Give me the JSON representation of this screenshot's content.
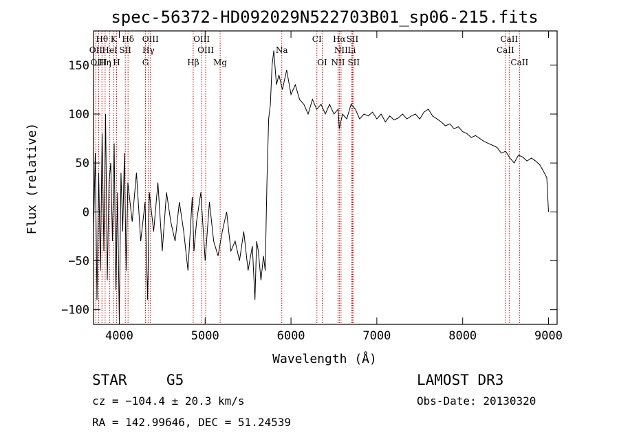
{
  "chart_data": {
    "type": "line",
    "title": "spec-56372-HD092029N522703B01_sp06-215.fits",
    "xlabel": "Wavelength (Å)",
    "ylabel": "Flux (relative)",
    "xlim": [
      3700,
      9100
    ],
    "ylim": [
      -115,
      185
    ],
    "xticks": [
      4000,
      5000,
      6000,
      7000,
      8000,
      9000
    ],
    "yticks": [
      -100,
      -50,
      0,
      50,
      100,
      150
    ],
    "series": [
      {
        "name": "flux",
        "x": [
          3700,
          3720,
          3740,
          3760,
          3780,
          3800,
          3820,
          3840,
          3860,
          3880,
          3900,
          3920,
          3940,
          3960,
          3980,
          4000,
          4020,
          4040,
          4060,
          4080,
          4100,
          4150,
          4200,
          4250,
          4300,
          4330,
          4350,
          4400,
          4450,
          4500,
          4550,
          4600,
          4650,
          4700,
          4750,
          4800,
          4850,
          4870,
          4900,
          4950,
          5000,
          5050,
          5100,
          5150,
          5200,
          5250,
          5300,
          5350,
          5400,
          5450,
          5500,
          5550,
          5580,
          5600,
          5620,
          5650,
          5680,
          5700,
          5720,
          5740,
          5760,
          5780,
          5800,
          5830,
          5860,
          5900,
          5950,
          6000,
          6050,
          6100,
          6150,
          6200,
          6250,
          6300,
          6350,
          6400,
          6450,
          6500,
          6550,
          6563,
          6600,
          6650,
          6700,
          6750,
          6800,
          6850,
          6900,
          6950,
          7000,
          7050,
          7100,
          7150,
          7200,
          7250,
          7300,
          7350,
          7400,
          7450,
          7500,
          7550,
          7600,
          7650,
          7700,
          7750,
          7800,
          7850,
          7900,
          7950,
          8000,
          8050,
          8100,
          8150,
          8200,
          8250,
          8300,
          8350,
          8400,
          8450,
          8500,
          8550,
          8600,
          8650,
          8700,
          8750,
          8800,
          8850,
          8900,
          8950,
          8980,
          9000
        ],
        "values": [
          -20,
          60,
          -90,
          40,
          -60,
          80,
          -40,
          100,
          -70,
          30,
          50,
          -30,
          70,
          -80,
          20,
          -110,
          40,
          -20,
          60,
          -60,
          30,
          -10,
          40,
          -30,
          10,
          -90,
          20,
          -20,
          30,
          -40,
          20,
          -10,
          -30,
          10,
          -20,
          -60,
          15,
          -40,
          -10,
          20,
          -50,
          10,
          -30,
          -45,
          -20,
          0,
          -40,
          -30,
          -50,
          -20,
          -60,
          -35,
          -90,
          -30,
          -40,
          -70,
          -45,
          -60,
          30,
          95,
          110,
          150,
          165,
          130,
          140,
          125,
          145,
          120,
          130,
          115,
          110,
          100,
          115,
          105,
          110,
          100,
          110,
          100,
          105,
          85,
          100,
          95,
          110,
          105,
          95,
          100,
          98,
          102,
          95,
          100,
          92,
          98,
          94,
          96,
          100,
          95,
          98,
          100,
          95,
          102,
          105,
          98,
          95,
          92,
          88,
          90,
          85,
          87,
          82,
          80,
          76,
          78,
          75,
          72,
          70,
          68,
          66,
          60,
          62,
          55,
          50,
          58,
          56,
          52,
          55,
          52,
          48,
          40,
          35,
          0
        ]
      }
    ],
    "emission_lines": [
      {
        "name": "Hθ",
        "x": 3798,
        "row": 0
      },
      {
        "name": "K",
        "x": 3934,
        "row": 0
      },
      {
        "name": "Hδ",
        "x": 4102,
        "row": 0
      },
      {
        "name": "OIII",
        "x": 4363,
        "row": 0
      },
      {
        "name": "OIII",
        "x": 4959,
        "row": 0
      },
      {
        "name": "CI",
        "x": 6302,
        "row": 0
      },
      {
        "name": "Hα",
        "x": 6563,
        "row": 0
      },
      {
        "name": "SII",
        "x": 6716,
        "row": 0
      },
      {
        "name": "CaII",
        "x": 8542,
        "row": 0
      },
      {
        "name": "OII",
        "x": 3727,
        "row": 1
      },
      {
        "name": "HeI",
        "x": 3889,
        "row": 1
      },
      {
        "name": "SII",
        "x": 4070,
        "row": 1
      },
      {
        "name": "Hγ",
        "x": 4340,
        "row": 1
      },
      {
        "name": "OIII",
        "x": 5007,
        "row": 1
      },
      {
        "name": "NII",
        "x": 6583,
        "row": 1
      },
      {
        "name": "Li",
        "x": 6708,
        "row": 1
      },
      {
        "name": "CaII",
        "x": 8498,
        "row": 1
      },
      {
        "name": "OIII",
        "x": 3760,
        "row": 2
      },
      {
        "name": "Hη",
        "x": 3835,
        "row": 2
      },
      {
        "name": "H",
        "x": 3968,
        "row": 2
      },
      {
        "name": "G",
        "x": 4305,
        "row": 2
      },
      {
        "name": "Hβ",
        "x": 4861,
        "row": 2
      },
      {
        "name": "Mg",
        "x": 5175,
        "row": 2
      },
      {
        "name": "OI",
        "x": 6364,
        "row": 2
      },
      {
        "name": "NII",
        "x": 6548,
        "row": 2
      },
      {
        "name": "SII",
        "x": 6731,
        "row": 2
      },
      {
        "name": "CaII",
        "x": 8662,
        "row": 2
      },
      {
        "name": "Na",
        "x": 5893,
        "row": 1
      }
    ],
    "grid": false
  },
  "info": {
    "object_class": "STAR",
    "subclass": "G5",
    "survey": "LAMOST DR3",
    "redshift": "cz = −104.4 ± 20.3 km/s",
    "obs_date": "Obs-Date: 20130320",
    "coords": "RA = 142.99646, DEC =  51.24539"
  },
  "colors": {
    "line_markers": "#cc0000",
    "spectrum": "#000000"
  }
}
